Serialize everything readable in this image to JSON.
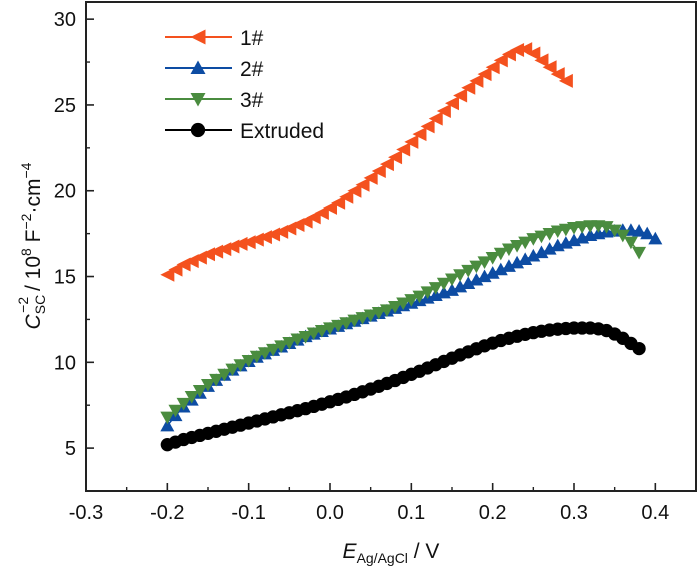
{
  "chart_data": {
    "type": "scatter",
    "title": "",
    "xlabel": {
      "main": "E",
      "sub": "Ag/AgCl",
      "unit": " / V"
    },
    "ylabel": {
      "main": "C",
      "sub": "SC",
      "sup": "−2",
      "unit": " / 10",
      "unit_sup": "8",
      "unit_rest": " F",
      "unit_rest_sup": "−2",
      "unit_tail": "·cm",
      "unit_tail_sup": "−4"
    },
    "xlim": [
      -0.3,
      0.45
    ],
    "ylim": [
      2.5,
      31
    ],
    "xticks": [
      -0.3,
      -0.2,
      -0.1,
      0.0,
      0.1,
      0.2,
      0.3,
      0.4
    ],
    "xtick_labels": [
      "-0.3",
      "-0.2",
      "-0.1",
      "0.0",
      "0.1",
      "0.2",
      "0.3",
      "0.4"
    ],
    "yticks": [
      5,
      10,
      15,
      20,
      25,
      30
    ],
    "ytick_labels": [
      "5",
      "10",
      "15",
      "20",
      "25",
      "30"
    ],
    "grid": false,
    "legend_position": "top-left",
    "series": [
      {
        "name": "1#",
        "marker": "triangle-left",
        "color": "#F4511E",
        "x": [
          -0.2,
          -0.19,
          -0.18,
          -0.17,
          -0.16,
          -0.15,
          -0.14,
          -0.13,
          -0.12,
          -0.11,
          -0.1,
          -0.09,
          -0.08,
          -0.07,
          -0.06,
          -0.05,
          -0.04,
          -0.03,
          -0.02,
          -0.01,
          0.0,
          0.01,
          0.02,
          0.03,
          0.04,
          0.05,
          0.06,
          0.07,
          0.08,
          0.09,
          0.1,
          0.11,
          0.12,
          0.13,
          0.14,
          0.15,
          0.16,
          0.17,
          0.18,
          0.19,
          0.2,
          0.21,
          0.22,
          0.23,
          0.24,
          0.25,
          0.26,
          0.27,
          0.28,
          0.29
        ],
        "y": [
          15.1,
          15.4,
          15.7,
          15.9,
          16.1,
          16.3,
          16.45,
          16.6,
          16.75,
          16.9,
          17.0,
          17.15,
          17.3,
          17.45,
          17.6,
          17.8,
          18.0,
          18.2,
          18.45,
          18.7,
          19.0,
          19.3,
          19.65,
          20.0,
          20.35,
          20.75,
          21.15,
          21.55,
          21.95,
          22.4,
          22.85,
          23.3,
          23.75,
          24.2,
          24.65,
          25.1,
          25.55,
          26.0,
          26.4,
          26.8,
          27.2,
          27.6,
          27.95,
          28.2,
          28.25,
          28.0,
          27.6,
          27.2,
          26.8,
          26.4
        ]
      },
      {
        "name": "2#",
        "marker": "triangle-up",
        "color": "#0D4CA3",
        "x": [
          -0.2,
          -0.19,
          -0.18,
          -0.17,
          -0.16,
          -0.15,
          -0.14,
          -0.13,
          -0.12,
          -0.11,
          -0.1,
          -0.09,
          -0.08,
          -0.07,
          -0.06,
          -0.05,
          -0.04,
          -0.03,
          -0.02,
          -0.01,
          0.0,
          0.01,
          0.02,
          0.03,
          0.04,
          0.05,
          0.06,
          0.07,
          0.08,
          0.09,
          0.1,
          0.11,
          0.12,
          0.13,
          0.14,
          0.15,
          0.16,
          0.17,
          0.18,
          0.19,
          0.2,
          0.21,
          0.22,
          0.23,
          0.24,
          0.25,
          0.26,
          0.27,
          0.28,
          0.29,
          0.3,
          0.31,
          0.32,
          0.33,
          0.34,
          0.35,
          0.36,
          0.37,
          0.38,
          0.39,
          0.4
        ],
        "y": [
          6.3,
          6.9,
          7.4,
          7.8,
          8.2,
          8.6,
          8.95,
          9.25,
          9.55,
          9.8,
          10.05,
          10.3,
          10.5,
          10.7,
          10.9,
          11.1,
          11.3,
          11.5,
          11.65,
          11.8,
          11.95,
          12.1,
          12.25,
          12.4,
          12.55,
          12.7,
          12.85,
          13.0,
          13.15,
          13.3,
          13.45,
          13.6,
          13.75,
          13.9,
          14.05,
          14.2,
          14.4,
          14.6,
          14.8,
          15.0,
          15.2,
          15.4,
          15.6,
          15.8,
          16.0,
          16.2,
          16.4,
          16.6,
          16.8,
          16.95,
          17.1,
          17.25,
          17.4,
          17.5,
          17.6,
          17.65,
          17.7,
          17.7,
          17.65,
          17.5,
          17.2
        ]
      },
      {
        "name": "3#",
        "marker": "triangle-down",
        "color": "#4A8C3F",
        "x": [
          -0.2,
          -0.19,
          -0.18,
          -0.17,
          -0.16,
          -0.15,
          -0.14,
          -0.13,
          -0.12,
          -0.11,
          -0.1,
          -0.09,
          -0.08,
          -0.07,
          -0.06,
          -0.05,
          -0.04,
          -0.03,
          -0.02,
          -0.01,
          0.0,
          0.01,
          0.02,
          0.03,
          0.04,
          0.05,
          0.06,
          0.07,
          0.08,
          0.09,
          0.1,
          0.11,
          0.12,
          0.13,
          0.14,
          0.15,
          0.16,
          0.17,
          0.18,
          0.19,
          0.2,
          0.21,
          0.22,
          0.23,
          0.24,
          0.25,
          0.26,
          0.27,
          0.28,
          0.29,
          0.3,
          0.31,
          0.32,
          0.33,
          0.34,
          0.35,
          0.36,
          0.37,
          0.38
        ],
        "y": [
          6.8,
          7.2,
          7.6,
          8.0,
          8.35,
          8.7,
          9.0,
          9.3,
          9.6,
          9.85,
          10.1,
          10.35,
          10.55,
          10.75,
          10.95,
          11.15,
          11.35,
          11.5,
          11.7,
          11.85,
          12.0,
          12.15,
          12.3,
          12.45,
          12.6,
          12.75,
          12.9,
          13.05,
          13.25,
          13.45,
          13.65,
          13.85,
          14.1,
          14.35,
          14.6,
          14.85,
          15.1,
          15.35,
          15.6,
          15.85,
          16.1,
          16.35,
          16.6,
          16.8,
          17.0,
          17.2,
          17.35,
          17.5,
          17.65,
          17.75,
          17.85,
          17.9,
          17.95,
          17.95,
          17.9,
          17.7,
          17.4,
          17.0,
          16.4
        ]
      },
      {
        "name": "Extruded",
        "marker": "circle",
        "color": "#000000",
        "x": [
          -0.2,
          -0.19,
          -0.18,
          -0.17,
          -0.16,
          -0.15,
          -0.14,
          -0.13,
          -0.12,
          -0.11,
          -0.1,
          -0.09,
          -0.08,
          -0.07,
          -0.06,
          -0.05,
          -0.04,
          -0.03,
          -0.02,
          -0.01,
          0.0,
          0.01,
          0.02,
          0.03,
          0.04,
          0.05,
          0.06,
          0.07,
          0.08,
          0.09,
          0.1,
          0.11,
          0.12,
          0.13,
          0.14,
          0.15,
          0.16,
          0.17,
          0.18,
          0.19,
          0.2,
          0.21,
          0.22,
          0.23,
          0.24,
          0.25,
          0.26,
          0.27,
          0.28,
          0.29,
          0.3,
          0.31,
          0.32,
          0.33,
          0.34,
          0.35,
          0.36,
          0.37,
          0.38
        ],
        "y": [
          5.2,
          5.35,
          5.5,
          5.62,
          5.74,
          5.86,
          5.98,
          6.1,
          6.22,
          6.34,
          6.46,
          6.58,
          6.7,
          6.82,
          6.94,
          7.06,
          7.18,
          7.3,
          7.43,
          7.56,
          7.7,
          7.84,
          7.98,
          8.13,
          8.28,
          8.44,
          8.6,
          8.77,
          8.94,
          9.12,
          9.3,
          9.48,
          9.67,
          9.86,
          10.05,
          10.24,
          10.43,
          10.61,
          10.79,
          10.96,
          11.12,
          11.27,
          11.4,
          11.52,
          11.63,
          11.73,
          11.81,
          11.88,
          11.93,
          11.97,
          12.0,
          12.0,
          12.0,
          11.95,
          11.85,
          11.65,
          11.4,
          11.1,
          10.8
        ]
      }
    ]
  }
}
